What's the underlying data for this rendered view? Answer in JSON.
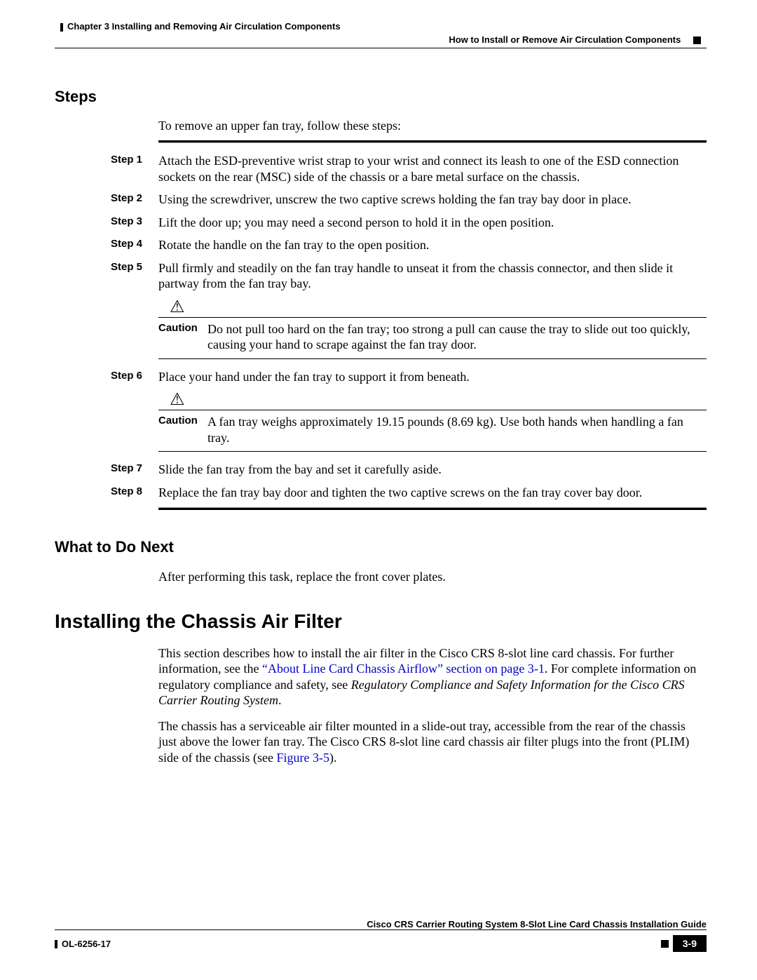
{
  "header": {
    "chapter": "Chapter 3      Installing and Removing Air Circulation Components",
    "section": "How to Install or Remove Air Circulation Components"
  },
  "steps_section": {
    "heading": "Steps",
    "intro": "To remove an upper fan tray, follow these steps:",
    "steps": [
      {
        "label": "Step 1",
        "text": "Attach the ESD-preventive wrist strap to your wrist and connect its leash to one of the ESD connection sockets on the rear (MSC) side of the chassis or a bare metal surface on the chassis."
      },
      {
        "label": "Step 2",
        "text": "Using the screwdriver, unscrew the two captive screws holding the fan tray bay door in place."
      },
      {
        "label": "Step 3",
        "text": "Lift the door up; you may need a second person to hold it in the open position."
      },
      {
        "label": "Step 4",
        "text": "Rotate the handle on the fan tray to the open position."
      },
      {
        "label": "Step 5",
        "text": "Pull firmly and steadily on the fan tray handle to unseat it from the chassis connector, and then slide it partway from the fan tray bay."
      },
      {
        "label": "Step 6",
        "text": "Place your hand under the fan tray to support it from beneath."
      },
      {
        "label": "Step 7",
        "text": "Slide the fan tray from the bay and set it carefully aside."
      },
      {
        "label": "Step 8",
        "text": "Replace the fan tray bay door and tighten the two captive screws on the fan tray cover bay door."
      }
    ],
    "cautions": [
      {
        "label": "Caution",
        "text": "Do not pull too hard on the fan tray; too strong a pull can cause the tray to slide out too quickly, causing your hand to scrape against the fan tray door."
      },
      {
        "label": "Caution",
        "text": "A fan tray weighs approximately 19.15 pounds (8.69 kg). Use both hands when handling a fan tray."
      }
    ]
  },
  "what_next": {
    "heading": "What to Do Next",
    "text": "After performing this task, replace the front cover plates."
  },
  "install_filter": {
    "heading": "Installing the Chassis Air Filter",
    "p1_a": "This section describes how to install the air filter in the Cisco CRS 8-slot line card chassis. For further information, see the ",
    "p1_link": "“About Line Card Chassis Airflow” section on page 3-1",
    "p1_b": ". For complete information on regulatory compliance and safety, see ",
    "p1_italic": "Regulatory Compliance and Safety Information for the Cisco CRS Carrier Routing System",
    "p1_c": ".",
    "p2_a": "The chassis has a serviceable air filter mounted in a slide-out tray, accessible from the rear of the chassis just above the lower fan tray. The Cisco CRS 8-slot line card chassis air filter plugs into the front (PLIM) side of the chassis (see ",
    "p2_link": "Figure 3-5",
    "p2_b": ")."
  },
  "footer": {
    "guide": "Cisco CRS Carrier Routing System 8-Slot Line Card Chassis Installation Guide",
    "ol": "OL-6256-17",
    "page": "3-9"
  },
  "icons": {
    "warning_glyph": "⚠"
  }
}
